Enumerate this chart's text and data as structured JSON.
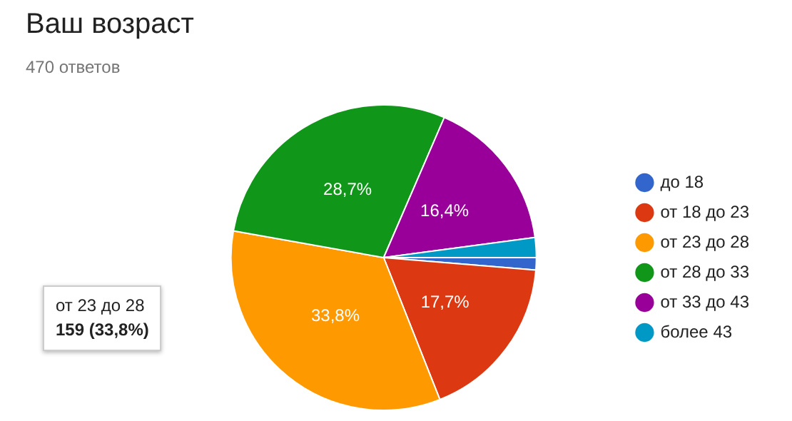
{
  "chart_data": {
    "type": "pie",
    "title": "Ваш возраст",
    "subtitle": "470 ответов",
    "categories": [
      "до 18",
      "от 18 до 23",
      "от 23 до 28",
      "от 28 до 33",
      "от 33 до 43",
      "более 43"
    ],
    "values": [
      1.3,
      17.7,
      33.8,
      28.7,
      16.4,
      2.1
    ],
    "colors": [
      "#3366cc",
      "#dc3912",
      "#ff9900",
      "#109618",
      "#990099",
      "#0099c6"
    ],
    "value_labels": [
      null,
      "17,7%",
      "33,8%",
      "28,7%",
      "16,4%",
      null
    ],
    "annotations": [
      "от 23 до 28",
      "159 (33,8%)"
    ],
    "legend": "right"
  }
}
